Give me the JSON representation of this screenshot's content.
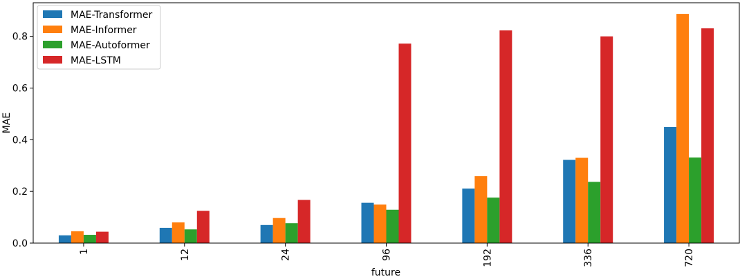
{
  "chart_data": {
    "type": "bar",
    "xlabel": "future",
    "ylabel": "MAE",
    "ylim": [
      0,
      0.93
    ],
    "categories": [
      "1",
      "12",
      "24",
      "96",
      "192",
      "336",
      "720"
    ],
    "yticks": [
      0.0,
      0.2,
      0.4,
      0.6,
      0.8
    ],
    "ytick_labels": [
      "0.0",
      "0.2",
      "0.4",
      "0.6",
      "0.8"
    ],
    "grid": false,
    "legend_position": "top-left",
    "series": [
      {
        "name": "MAE-Transformer",
        "color": "#1f77b4",
        "values": [
          0.03,
          0.059,
          0.07,
          0.156,
          0.211,
          0.322,
          0.449
        ]
      },
      {
        "name": "MAE-Informer",
        "color": "#ff7f0e",
        "values": [
          0.046,
          0.08,
          0.097,
          0.149,
          0.259,
          0.33,
          0.887
        ]
      },
      {
        "name": "MAE-Autoformer",
        "color": "#2ca02c",
        "values": [
          0.032,
          0.053,
          0.077,
          0.129,
          0.176,
          0.237,
          0.331
        ]
      },
      {
        "name": "MAE-LSTM",
        "color": "#d62728",
        "values": [
          0.044,
          0.125,
          0.167,
          0.772,
          0.823,
          0.8,
          0.831
        ]
      }
    ]
  }
}
